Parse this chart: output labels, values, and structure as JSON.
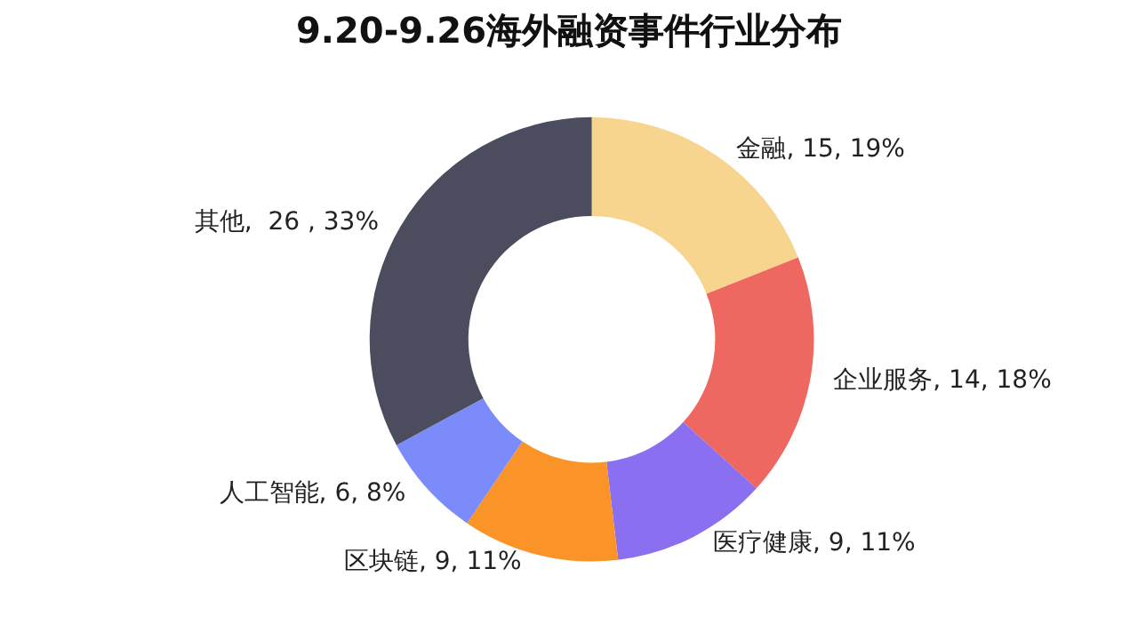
{
  "chart_data": {
    "type": "donut",
    "title": "9.20-9.26海外融资事件行业分布",
    "categories": [
      "金融",
      "企业服务",
      "医疗健康",
      "区块链",
      "人工智能",
      "其他"
    ],
    "values": [
      15,
      14,
      9,
      9,
      6,
      26
    ],
    "colors": [
      "#f8d58f",
      "#ee6760",
      "#8a6ff0",
      "#fa9428",
      "#7b8cfa",
      "#4b4c5e"
    ],
    "value_labels": [
      "15, 19%",
      "14, 18%",
      "9, 11%",
      "9, 11%",
      "6, 8%",
      " 26 , 33%"
    ],
    "legend": false
  }
}
